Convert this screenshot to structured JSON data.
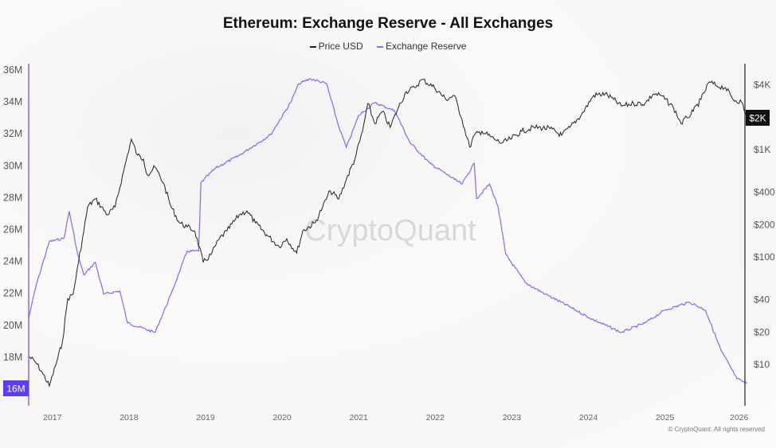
{
  "chart_data": {
    "type": "line",
    "title": "Ethereum: Exchange Reserve - All Exchanges",
    "legend": [
      "Price USD",
      "Exchange Reserve"
    ],
    "legend_placement": "top-center",
    "watermark": "CryptoQuant",
    "copyright": "© CryptoQuant. All rights reserved",
    "x_ticks": [
      "2017",
      "2018",
      "2019",
      "2020",
      "2021",
      "2022",
      "2023",
      "2024",
      "2025",
      "2026"
    ],
    "x_range": [
      2016.69,
      2026.07
    ],
    "left_axis": {
      "label": "Exchange Reserve",
      "ticks": [
        "36M",
        "34M",
        "32M",
        "30M",
        "28M",
        "26M",
        "24M",
        "22M",
        "20M",
        "18M"
      ],
      "current_label": "16M",
      "range_millions": [
        15.5,
        36.5
      ]
    },
    "right_axis": {
      "label": "Price USD",
      "scale": "log",
      "ticks": [
        "$4K",
        "$1K",
        "$400",
        "$200",
        "$100",
        "$40",
        "$20",
        "$10"
      ],
      "current_label": "$2K"
    },
    "colors": {
      "price": "#222222",
      "reserve": "#7b6cf0",
      "reserve_badge": "#5b3df5",
      "price_badge": "#111111"
    },
    "series": [
      {
        "name": "Exchange Reserve",
        "unit": "millions ETH",
        "x": [
          2016.69,
          2016.79,
          2016.96,
          2017.15,
          2017.22,
          2017.33,
          2017.41,
          2017.56,
          2017.67,
          2017.88,
          2017.98,
          2018.34,
          2018.55,
          2018.76,
          2018.91,
          2018.94,
          2019.13,
          2019.44,
          2019.85,
          2020.11,
          2020.22,
          2020.37,
          2020.58,
          2020.74,
          2020.84,
          2021.0,
          2021.21,
          2021.47,
          2021.67,
          2021.93,
          2022.25,
          2022.35,
          2022.51,
          2022.54,
          2022.71,
          2022.82,
          2022.92,
          2023.18,
          2023.44,
          2023.76,
          2024.02,
          2024.43,
          2024.74,
          2025.0,
          2025.32,
          2025.53,
          2025.73,
          2025.94,
          2026.07
        ],
        "values": [
          20.4,
          22.5,
          25.2,
          25.4,
          27.1,
          24.4,
          23.1,
          23.9,
          21.9,
          22.1,
          20.1,
          19.5,
          21.9,
          24.6,
          24.6,
          28.9,
          29.8,
          30.6,
          31.9,
          33.9,
          35.1,
          35.4,
          35.1,
          32.4,
          31.1,
          33.1,
          33.9,
          33.4,
          31.4,
          30.1,
          29.1,
          28.8,
          30.1,
          27.9,
          28.8,
          27.4,
          24.4,
          22.6,
          21.9,
          21.1,
          20.4,
          19.5,
          20.1,
          20.9,
          21.4,
          20.9,
          18.4,
          16.6,
          16.3
        ]
      },
      {
        "name": "Price USD",
        "unit": "USD",
        "x": [
          2016.69,
          2016.78,
          2016.88,
          2016.96,
          2017.04,
          2017.13,
          2017.2,
          2017.27,
          2017.34,
          2017.41,
          2017.46,
          2017.56,
          2017.72,
          2017.82,
          2017.93,
          2018.03,
          2018.11,
          2018.19,
          2018.24,
          2018.34,
          2018.45,
          2018.55,
          2018.66,
          2018.76,
          2018.86,
          2018.97,
          2019.07,
          2019.18,
          2019.28,
          2019.44,
          2019.54,
          2019.65,
          2019.8,
          2019.96,
          2020.06,
          2020.19,
          2020.27,
          2020.43,
          2020.53,
          2020.63,
          2020.74,
          2020.84,
          2020.95,
          2021.05,
          2021.12,
          2021.21,
          2021.31,
          2021.41,
          2021.52,
          2021.62,
          2021.73,
          2021.83,
          2021.99,
          2022.14,
          2022.25,
          2022.35,
          2022.45,
          2022.51,
          2022.61,
          2022.77,
          2022.87,
          2022.98,
          2023.13,
          2023.29,
          2023.5,
          2023.65,
          2023.76,
          2023.91,
          2024.07,
          2024.22,
          2024.33,
          2024.43,
          2024.59,
          2024.74,
          2024.85,
          2024.95,
          2025.11,
          2025.21,
          2025.29,
          2025.37,
          2025.47,
          2025.58,
          2025.68,
          2025.79,
          2025.89,
          2026.0,
          2026.07
        ],
        "values": [
          11.9,
          10.5,
          8.1,
          6.3,
          9.7,
          16.1,
          41,
          45,
          89,
          175,
          293,
          347,
          247,
          293,
          631,
          1250,
          887,
          815,
          580,
          687,
          489,
          293,
          208,
          191,
          175,
          89,
          105,
          148,
          175,
          247,
          269,
          208,
          161,
          125,
          148,
          109,
          175,
          208,
          293,
          412,
          347,
          532,
          815,
          1480,
          2690,
          1750,
          2270,
          1610,
          2470,
          3470,
          3780,
          4490,
          3780,
          2930,
          3190,
          1910,
          1050,
          1360,
          1480,
          1250,
          1150,
          1250,
          1480,
          1610,
          1570,
          1360,
          1610,
          2110,
          3200,
          3300,
          2930,
          2540,
          2690,
          2690,
          3300,
          3190,
          2470,
          1750,
          1980,
          2270,
          2930,
          4260,
          3910,
          3780,
          2930,
          2780,
          1980
        ]
      }
    ]
  }
}
